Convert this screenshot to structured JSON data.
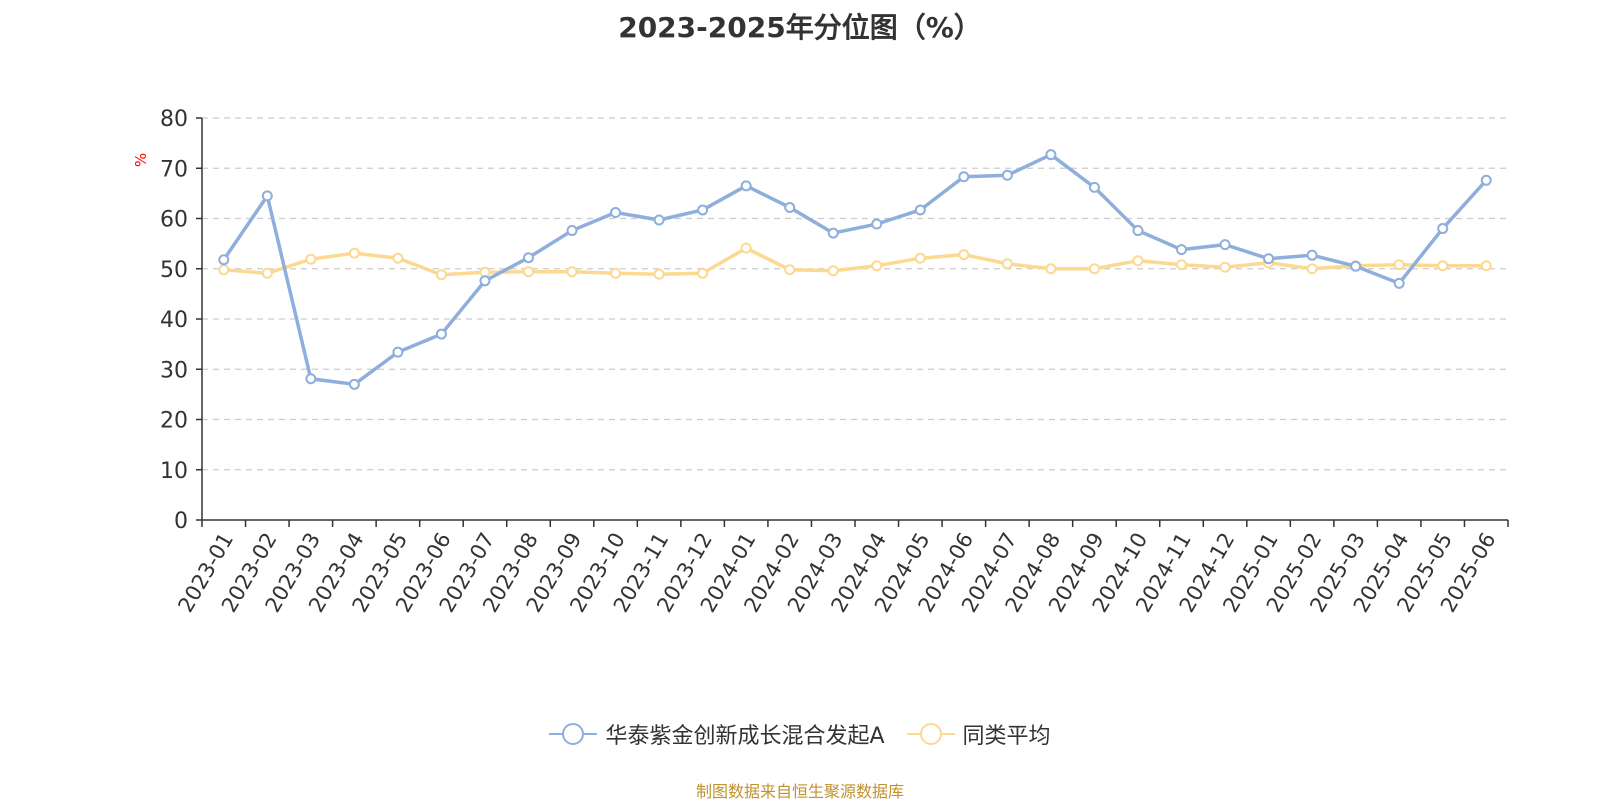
{
  "chart_data": {
    "type": "line",
    "title": "2023-2025年分位图（%）",
    "ylabel": "%",
    "ylim": [
      0,
      80
    ],
    "yticks": [
      0,
      10,
      20,
      30,
      40,
      50,
      60,
      70,
      80
    ],
    "grid": true,
    "legend_position": "bottom",
    "categories": [
      "2023-01",
      "2023-02",
      "2023-03",
      "2023-04",
      "2023-05",
      "2023-06",
      "2023-07",
      "2023-08",
      "2023-09",
      "2023-10",
      "2023-11",
      "2023-12",
      "2024-01",
      "2024-02",
      "2024-03",
      "2024-04",
      "2024-05",
      "2024-06",
      "2024-07",
      "2024-08",
      "2024-09",
      "2024-10",
      "2024-11",
      "2024-12",
      "2025-01",
      "2025-02",
      "2025-03",
      "2025-04",
      "2025-05",
      "2025-06"
    ],
    "series": [
      {
        "name": "华泰紫金创新成长混合发起A",
        "color": "#8eaedb",
        "values": [
          51.8,
          64.5,
          28.1,
          27.0,
          33.4,
          37.0,
          47.6,
          52.2,
          57.6,
          61.2,
          59.7,
          61.7,
          66.5,
          62.2,
          57.1,
          58.9,
          61.7,
          68.3,
          68.6,
          72.7,
          66.2,
          57.6,
          53.8,
          54.8,
          52.0,
          52.7,
          50.5,
          47.1,
          58.0,
          67.6
        ]
      },
      {
        "name": "同类平均",
        "color": "#fcd991",
        "values": [
          49.8,
          49.1,
          51.9,
          53.1,
          52.1,
          48.8,
          49.3,
          49.4,
          49.4,
          49.1,
          48.9,
          49.1,
          54.1,
          49.8,
          49.6,
          50.6,
          52.1,
          52.8,
          51.0,
          50.0,
          50.0,
          51.6,
          50.8,
          50.3,
          51.2,
          50.0,
          50.6,
          50.8,
          50.6,
          50.6
        ]
      }
    ],
    "source": "制图数据来自恒生聚源数据库"
  }
}
